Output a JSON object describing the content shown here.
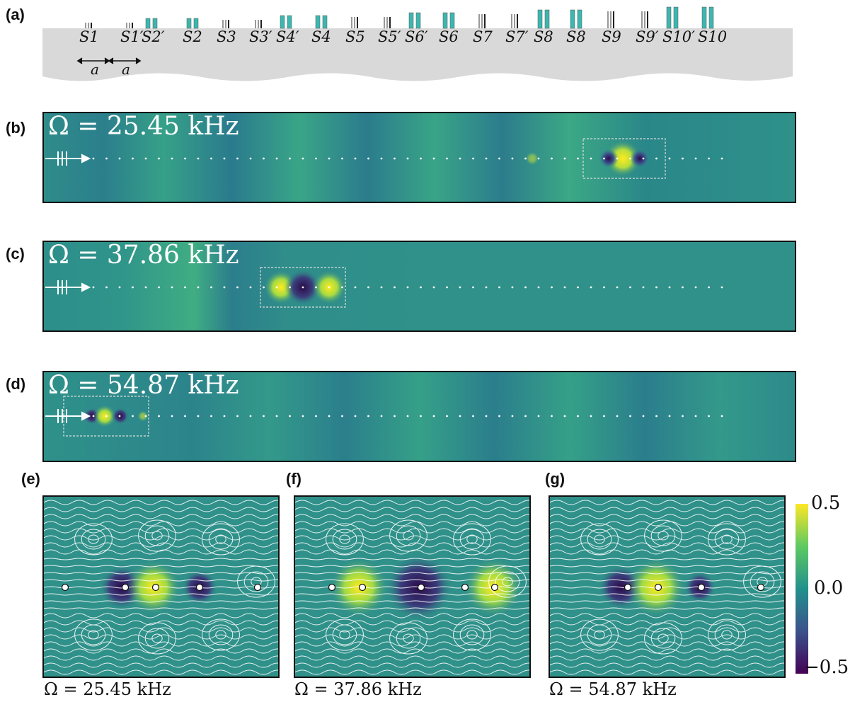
{
  "panel_labels": [
    "(a)",
    "(b)",
    "(c)",
    "(d)",
    "(e)",
    "(f)",
    "(g)"
  ],
  "sites": [
    "S1",
    "S1′",
    "S2′",
    "S2",
    "S3",
    "S3′",
    "S4′",
    "S4",
    "S5",
    "S5′",
    "S6′",
    "S6",
    "S7",
    "S7′",
    "S8",
    "S8",
    "S9",
    "S9′",
    "S10′",
    "S10"
  ],
  "lattice_label": "a",
  "freq": {
    "b": "Ω = 25.45 kHz",
    "c": "Ω = 37.86 kHz",
    "d": "Ω = 54.87 kHz",
    "e": "Ω = 25.45 kHz",
    "f": "Ω = 37.86 kHz",
    "g": "Ω = 54.87 kHz"
  },
  "colorbar": {
    "max": "0.5",
    "mid": "0.0",
    "min": "−0.5"
  },
  "colors": {
    "background_field": "#2a8c86",
    "positive": "#f0e81e",
    "negative": "#3c0f5a",
    "ridge": "#3fb3ad"
  }
}
